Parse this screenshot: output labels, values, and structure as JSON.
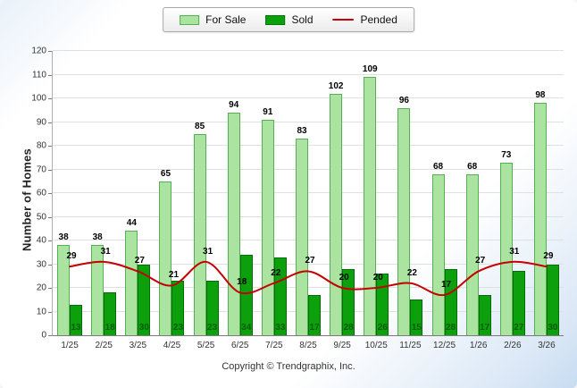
{
  "legend": {
    "for_sale_label": "For Sale",
    "sold_label": "Sold",
    "pended_label": "Pended"
  },
  "footer_text": "Copyright © Trendgraphix, Inc.",
  "chart_data": {
    "type": "bar",
    "subtype": "grouped-bars-with-line-overlay",
    "title": "",
    "xlabel": "",
    "ylabel": "Number of Homes",
    "ylim": [
      0,
      120
    ],
    "ytick_step": 10,
    "grid": true,
    "legend_position": "top-center",
    "categories": [
      "1/25",
      "2/25",
      "3/25",
      "4/25",
      "5/25",
      "6/25",
      "7/25",
      "8/25",
      "9/25",
      "10/25",
      "11/25",
      "12/25",
      "1/26",
      "2/26",
      "3/26"
    ],
    "series": [
      {
        "name": "For Sale",
        "type": "bar",
        "color": "#abe3a1",
        "border_color": "#55b055",
        "values": [
          38,
          38,
          44,
          65,
          85,
          94,
          91,
          83,
          102,
          109,
          96,
          68,
          68,
          73,
          98
        ]
      },
      {
        "name": "Sold",
        "type": "bar",
        "color": "#0ca00c",
        "border_color": "#066d06",
        "values": [
          13,
          18,
          30,
          23,
          23,
          34,
          33,
          17,
          28,
          26,
          15,
          28,
          17,
          27,
          30
        ]
      },
      {
        "name": "Pended",
        "type": "line",
        "color": "#c40000",
        "values": [
          29,
          31,
          27,
          21,
          31,
          18,
          22,
          27,
          20,
          20,
          22,
          17,
          27,
          31,
          29
        ]
      }
    ]
  }
}
